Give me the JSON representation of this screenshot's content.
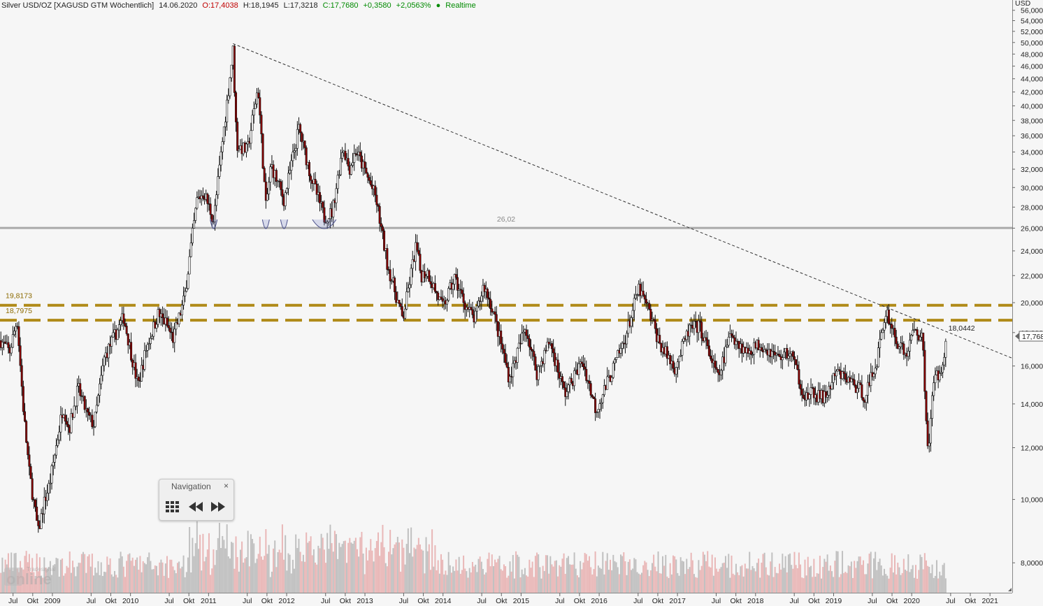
{
  "header": {
    "instrument": "Silver USD/OZ [XAGUSD GTM Wöchentlich]",
    "date": "14.06.2020",
    "open": "O:17,4038",
    "high": "H:18,1945",
    "low": "L:17,3218",
    "close": "C:17,7680",
    "change": "+0,3580",
    "change_pct": "+2,0563%",
    "realtime": "Realtime"
  },
  "navigation": {
    "title": "Navigation",
    "close": "×"
  },
  "logo": {
    "brand_small": "Tradesignal",
    "brand_big": "online"
  },
  "colors": {
    "levels": "#b08a18",
    "support": "#a9a9a9",
    "up": "#ffffff",
    "down": "#8b0000",
    "volume_up": "#c0c0c0",
    "volume_down": "#e9b7b7"
  },
  "chart_data": {
    "type": "candlestick",
    "unit": "USD",
    "y_scale": "log",
    "ylim": [
      7.2,
      57.5
    ],
    "y_ticks": [
      "56,0000",
      "54,0000",
      "52,0000",
      "50,0000",
      "48,0000",
      "46,0000",
      "44,0000",
      "42,0000",
      "40,0000",
      "38,0000",
      "36,0000",
      "34,0000",
      "32,0000",
      "30,0000",
      "28,0000",
      "26,0000",
      "24,0000",
      "22,0000",
      "20,0000",
      "18,0000",
      "16,0000",
      "14,0000",
      "12,0000",
      "10,0000",
      "8,0000"
    ],
    "last_price_label": "17,768",
    "x_ticks": [
      "Jul",
      "Okt",
      "2009",
      "Jul",
      "Okt",
      "2010",
      "Jul",
      "Okt",
      "2011",
      "Jul",
      "Okt",
      "2012",
      "Jul",
      "Okt",
      "2013",
      "Jul",
      "Okt",
      "2014",
      "Jul",
      "Okt",
      "2015",
      "Jul",
      "Okt",
      "2016",
      "Jul",
      "Okt",
      "2017",
      "Jul",
      "Okt",
      "2018",
      "Jul",
      "Okt",
      "2019",
      "Jul",
      "Okt",
      "2020",
      "Jul",
      "Okt",
      "2021"
    ],
    "x_tick_dates": [
      "2008-07-01",
      "2008-10-01",
      "2009-01-01",
      "2009-07-01",
      "2009-10-01",
      "2010-01-01",
      "2010-07-01",
      "2010-10-01",
      "2011-01-01",
      "2011-07-01",
      "2011-10-01",
      "2012-01-01",
      "2012-07-01",
      "2012-10-01",
      "2013-01-01",
      "2013-07-01",
      "2013-10-01",
      "2014-01-01",
      "2014-07-01",
      "2014-10-01",
      "2015-01-01",
      "2015-07-01",
      "2015-10-01",
      "2016-01-01",
      "2016-07-01",
      "2016-10-01",
      "2017-01-01",
      "2017-07-01",
      "2017-10-01",
      "2018-01-01",
      "2018-07-01",
      "2018-10-01",
      "2019-01-01",
      "2019-07-01",
      "2019-10-01",
      "2020-01-01",
      "2020-07-01",
      "2020-10-01",
      "2021-01-01"
    ],
    "x_range": [
      "2008-05-01",
      "2021-04-15"
    ],
    "price_path": [
      [
        "2008-05-05",
        17.5
      ],
      [
        "2008-06-15",
        16.8
      ],
      [
        "2008-07-20",
        18.9
      ],
      [
        "2008-08-20",
        13.5
      ],
      [
        "2008-09-15",
        11.0
      ],
      [
        "2008-10-27",
        8.9
      ],
      [
        "2008-11-20",
        9.8
      ],
      [
        "2008-12-20",
        10.6
      ],
      [
        "2009-02-20",
        13.9
      ],
      [
        "2009-03-20",
        12.8
      ],
      [
        "2009-05-01",
        14.8
      ],
      [
        "2009-06-15",
        13.4
      ],
      [
        "2009-07-15",
        13.0
      ],
      [
        "2009-09-01",
        16.5
      ],
      [
        "2009-11-30",
        19.0
      ],
      [
        "2010-02-05",
        14.9
      ],
      [
        "2010-03-15",
        17.0
      ],
      [
        "2010-05-10",
        19.2
      ],
      [
        "2010-06-15",
        18.6
      ],
      [
        "2010-07-20",
        17.6
      ],
      [
        "2010-09-10",
        20.3
      ],
      [
        "2010-11-08",
        28.7
      ],
      [
        "2010-12-10",
        29.5
      ],
      [
        "2011-01-25",
        26.7
      ],
      [
        "2011-03-07",
        35.3
      ],
      [
        "2011-04-25",
        48.6
      ],
      [
        "2011-05-13",
        34.8
      ],
      [
        "2011-07-01",
        34.1
      ],
      [
        "2011-08-20",
        42.8
      ],
      [
        "2011-09-26",
        28.0
      ],
      [
        "2011-10-20",
        32.5
      ],
      [
        "2011-12-20",
        28.7
      ],
      [
        "2012-02-27",
        37.0
      ],
      [
        "2012-04-20",
        31.5
      ],
      [
        "2012-06-25",
        27.0
      ],
      [
        "2012-08-01",
        27.5
      ],
      [
        "2012-09-20",
        34.8
      ],
      [
        "2012-10-20",
        32.0
      ],
      [
        "2012-11-20",
        34.2
      ],
      [
        "2013-01-15",
        31.0
      ],
      [
        "2013-02-20",
        29.0
      ],
      [
        "2013-04-15",
        23.0
      ],
      [
        "2013-06-27",
        18.8
      ],
      [
        "2013-08-28",
        24.5
      ],
      [
        "2013-09-20",
        22.0
      ],
      [
        "2013-10-20",
        22.3
      ],
      [
        "2013-12-31",
        19.6
      ],
      [
        "2014-02-24",
        21.8
      ],
      [
        "2014-04-20",
        19.7
      ],
      [
        "2014-05-30",
        18.8
      ],
      [
        "2014-07-10",
        21.3
      ],
      [
        "2014-08-20",
        19.6
      ],
      [
        "2014-10-05",
        17.0
      ],
      [
        "2014-11-07",
        15.3
      ],
      [
        "2015-01-22",
        18.4
      ],
      [
        "2015-03-15",
        15.6
      ],
      [
        "2015-05-15",
        17.5
      ],
      [
        "2015-07-24",
        14.5
      ],
      [
        "2015-10-15",
        16.3
      ],
      [
        "2015-12-17",
        13.7
      ],
      [
        "2016-02-20",
        15.4
      ],
      [
        "2016-04-28",
        17.5
      ],
      [
        "2016-07-04",
        21.0
      ],
      [
        "2016-08-15",
        19.6
      ],
      [
        "2016-10-10",
        17.3
      ],
      [
        "2016-12-20",
        15.9
      ],
      [
        "2017-02-25",
        18.2
      ],
      [
        "2017-04-15",
        18.4
      ],
      [
        "2017-07-10",
        15.3
      ],
      [
        "2017-09-08",
        18.0
      ],
      [
        "2017-11-15",
        16.8
      ],
      [
        "2018-01-25",
        17.3
      ],
      [
        "2018-04-15",
        16.5
      ],
      [
        "2018-06-15",
        16.8
      ],
      [
        "2018-08-20",
        14.3
      ],
      [
        "2018-09-20",
        14.5
      ],
      [
        "2018-11-20",
        14.3
      ],
      [
        "2019-01-15",
        15.6
      ],
      [
        "2019-03-20",
        15.2
      ],
      [
        "2019-05-28",
        14.4
      ],
      [
        "2019-07-20",
        16.2
      ],
      [
        "2019-09-04",
        19.5
      ],
      [
        "2019-10-20",
        17.5
      ],
      [
        "2019-12-05",
        16.6
      ],
      [
        "2020-01-15",
        18.3
      ],
      [
        "2020-02-20",
        17.6
      ],
      [
        "2020-03-18",
        11.8
      ],
      [
        "2020-04-15",
        15.4
      ],
      [
        "2020-05-10",
        15.5
      ],
      [
        "2020-06-14",
        17.77
      ]
    ],
    "levels": [
      {
        "value": 26.02,
        "label": "26,02",
        "style": "solid"
      },
      {
        "value": 19.8173,
        "label": "19,8173",
        "style": "dashed"
      },
      {
        "value": 18.7975,
        "label": "18,7975",
        "style": "dashed"
      }
    ],
    "trendline": {
      "from": [
        "2011-04-25",
        49.8
      ],
      "to": [
        "2020-06-14",
        18.0442
      ],
      "label": "18,0442"
    },
    "support_touch_dates": [
      "2011-01-25",
      "2011-09-26",
      "2011-12-20",
      "2012-06-25"
    ],
    "volume_range": [
      0,
      100
    ]
  }
}
